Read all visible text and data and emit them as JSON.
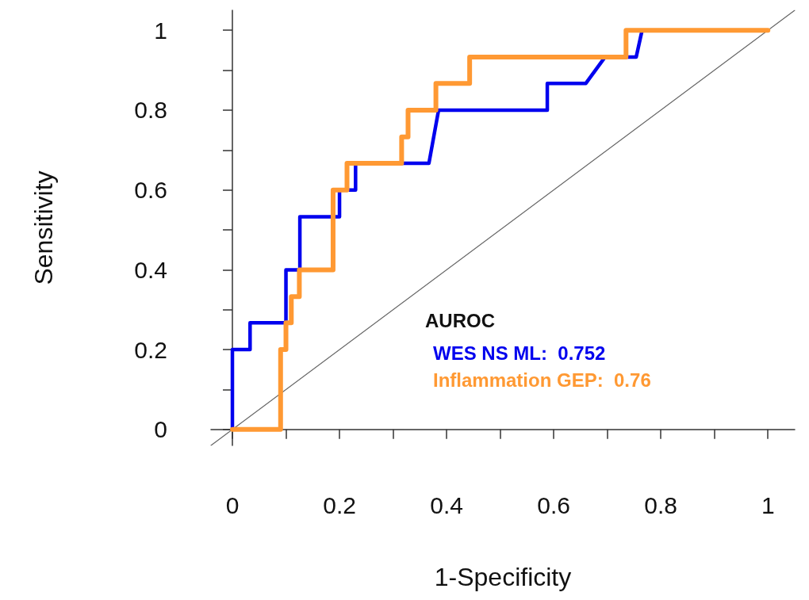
{
  "chart_data": {
    "type": "line",
    "xlabel": "1-Specificity",
    "ylabel": "Sensitivity",
    "legend_title": "AUROC",
    "legend": "bottom right",
    "marker": "none",
    "line_style": "solid",
    "xlim": [
      -0.04,
      1.05
    ],
    "ylim": [
      -0.04,
      1.05
    ],
    "xticks": [
      0,
      {
        "value": 0.1,
        "label": null
      },
      0.2,
      {
        "value": 0.3,
        "label": null
      },
      0.4,
      {
        "value": 0.5,
        "label": null
      },
      0.6,
      {
        "value": 0.7,
        "label": null
      },
      0.8,
      {
        "value": 0.9,
        "label": null
      },
      1
    ],
    "yticks": [
      0,
      {
        "value": 0.1,
        "label": null
      },
      0.2,
      {
        "value": 0.3,
        "label": null
      },
      0.4,
      {
        "value": 0.5,
        "label": null
      },
      0.6,
      {
        "value": 0.7,
        "label": null
      },
      0.8,
      {
        "value": 0.9,
        "label": null
      },
      1
    ],
    "series": [
      {
        "color": "#666666",
        "x": [
          -0.04,
          1.05
        ],
        "values": [
          -0.04,
          1.05
        ]
      },
      {
        "name": "WES NS ML:  0.752",
        "color": "#0000ee",
        "x": [
          0,
          0,
          0.033,
          0.033,
          0.1,
          0.1,
          0.126,
          0.126,
          0.2,
          0.2,
          0.23,
          0.23,
          0.367,
          0.385,
          0.588,
          0.588,
          0.66,
          0.696,
          0.754,
          0.765,
          1
        ],
        "values": [
          0,
          0.2,
          0.2,
          0.267,
          0.267,
          0.4,
          0.4,
          0.533,
          0.533,
          0.6,
          0.6,
          0.667,
          0.667,
          0.8,
          0.8,
          0.867,
          0.867,
          0.933,
          0.933,
          1,
          1
        ]
      },
      {
        "name": "Inflammation GEP:  0.76",
        "color": "#ff9933",
        "x": [
          0,
          0.09,
          0.09,
          0.1,
          0.1,
          0.11,
          0.11,
          0.125,
          0.125,
          0.188,
          0.188,
          0.214,
          0.214,
          0.316,
          0.316,
          0.328,
          0.328,
          0.38,
          0.38,
          0.443,
          0.443,
          0.735,
          0.735,
          1
        ],
        "values": [
          0,
          0,
          0.2,
          0.2,
          0.267,
          0.267,
          0.333,
          0.333,
          0.4,
          0.4,
          0.6,
          0.6,
          0.667,
          0.667,
          0.733,
          0.733,
          0.8,
          0.8,
          0.867,
          0.867,
          0.933,
          0.933,
          1,
          1
        ]
      }
    ]
  }
}
